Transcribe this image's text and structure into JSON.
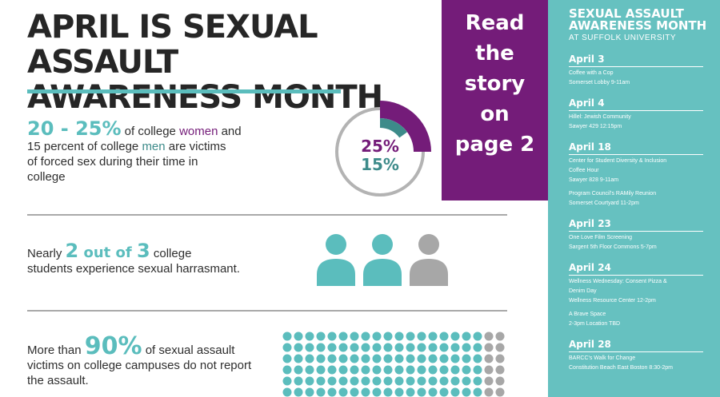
{
  "colors": {
    "teal": "#5bbdbd",
    "purple": "#741c79",
    "dark_teal": "#3d8b8a",
    "gray": "#a7a7a7",
    "sidebar_bg": "#66c1c0",
    "text": "#2b2b2b"
  },
  "header": {
    "title_line1": "APRIL IS SEXUAL ASSAULT",
    "title_line2": "AWARENESS MONTH"
  },
  "stat1": {
    "big": "20 - 25%",
    "t1": " of college ",
    "women": "women",
    "t2": " and",
    "line2_a": "15 percent of college ",
    "men": "men",
    "line2_b": " are victims",
    "line3": "of forced sex during their time in",
    "line4": "college",
    "donut_top": "25%",
    "donut_bottom": "15%",
    "women_fraction": 0.25,
    "men_fraction": 0.15
  },
  "stat2": {
    "t1": "Nearly ",
    "num1": "2",
    "mid": " out of ",
    "num2": "3",
    "t2": " college",
    "line2": "students experience sexual harrasmant.",
    "highlighted": 2,
    "total": 3
  },
  "stat3": {
    "t1": "More than ",
    "big": "90%",
    "t2": " of sexual assault",
    "line2": "victims on college campuses do not report",
    "line3": "the assault.",
    "report_fraction": 0.9
  },
  "promo": {
    "lines": [
      "Read",
      "the",
      "story",
      "on",
      "page 2"
    ]
  },
  "sidebar": {
    "title1": "SEXUAL ASSAULT",
    "title2": "AWARENESS MONTH",
    "subtitle": "AT SUFFOLK UNIVERSITY",
    "events": [
      {
        "date": "April 3",
        "items": [
          "Coffee with a Cop",
          "Somerset Lobby 9-11am"
        ]
      },
      {
        "date": "April 4",
        "items": [
          "Hillel: Jewish Community",
          "Sawyer 429 12:15pm"
        ]
      },
      {
        "date": "April 18",
        "items": [
          "Center for Student Diversity & Inclusion",
          "Coffee Hour",
          "Sawyer 828 9-11am",
          "",
          "Program Council's RAMily Reunion",
          "Somerset Courtyard 11-2pm"
        ]
      },
      {
        "date": "April 23",
        "items": [
          "One Love Film Screening",
          "Sargent 5th Floor Commons 5-7pm"
        ]
      },
      {
        "date": "April 24",
        "items": [
          "Wellness Wednesday: Consent Pizza &",
          "Denim Day",
          "Wellness Resource Center 12-2pm",
          "",
          "A Brave Space",
          "2-3pm Location TBD"
        ]
      },
      {
        "date": "April 28",
        "items": [
          "BARCC's Walk for Change",
          "Constitution Beach East Boston 8:30-2pm"
        ]
      }
    ]
  }
}
